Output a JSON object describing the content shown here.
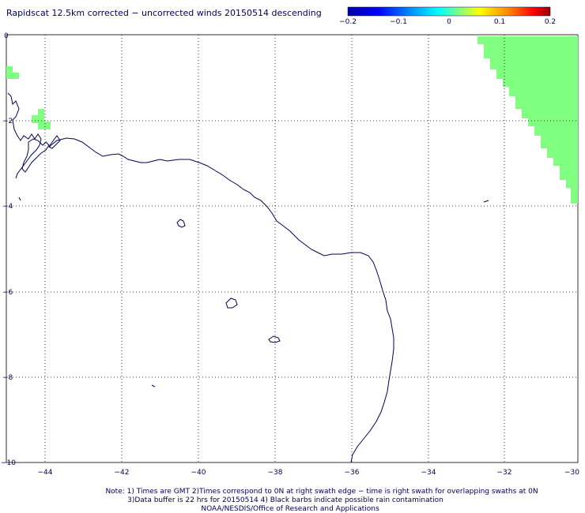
{
  "title": "Rapidscat 12.5km corrected − uncorrected winds 20150514 descending",
  "colorbar": {
    "labels": [
      "−0.2",
      "−0.1",
      "0",
      "0.1",
      "0.2"
    ],
    "min": -0.2,
    "max": 0.2
  },
  "axes": {
    "x_ticks": [
      "−44",
      "−42",
      "−40",
      "−38",
      "−36",
      "−34",
      "−32",
      "−30"
    ],
    "y_ticks": [
      "0",
      "−2",
      "−4",
      "−6",
      "−8",
      "−10"
    ],
    "lon_range": [
      -44.9,
      -30
    ],
    "lat_range": [
      -10,
      0
    ],
    "grid": true
  },
  "colors": {
    "coastline": "#00005a",
    "swath_fill": "#80ff80",
    "grid": "#000000"
  },
  "notes": {
    "line1": "Note: 1) Times are GMT 2)Times correspond to 0N at right swath edge − time is right swath for overlapping swaths at 0N",
    "line2": "3)Data buffer is 22 hrs for 20150514 4) Black barbs indicate possible rain contamination",
    "line3": "NOAA/NESDIS/Office of Research and Applications"
  }
}
